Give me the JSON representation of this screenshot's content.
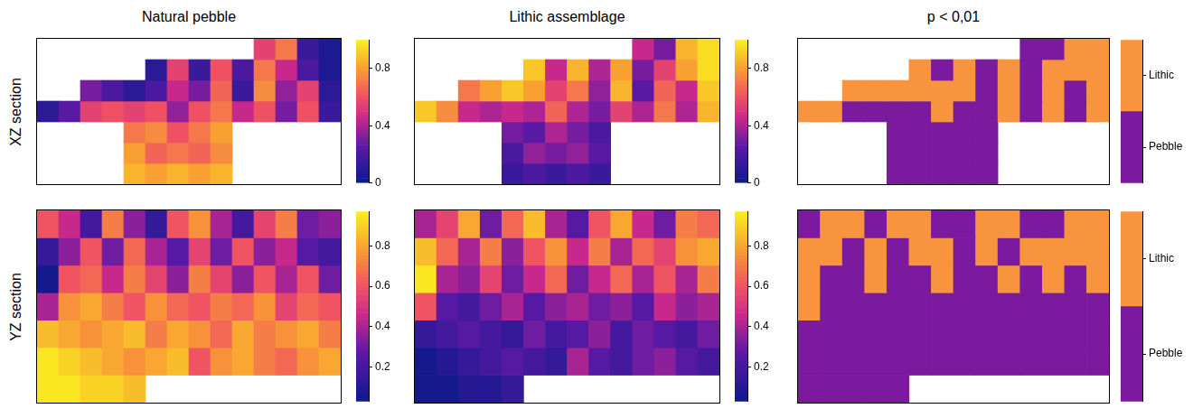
{
  "chart_data": [
    {
      "type": "heatmap",
      "title": "Natural pebble",
      "ylabel": "XZ section",
      "tick_labels": false,
      "cells": [
        [
          null,
          null,
          null,
          null,
          null,
          null,
          null,
          null,
          null,
          null,
          0.55,
          0.7,
          0.15,
          0.05
        ],
        [
          null,
          null,
          null,
          null,
          null,
          0.1,
          0.55,
          0.15,
          0.6,
          0.2,
          0.7,
          0.45,
          0.2,
          0.05
        ],
        [
          null,
          null,
          0.3,
          0.2,
          0.1,
          0.2,
          0.45,
          0.3,
          0.65,
          0.15,
          0.75,
          0.35,
          0.55,
          0.1
        ],
        [
          0.1,
          0.25,
          0.55,
          0.6,
          0.55,
          0.6,
          0.35,
          0.6,
          0.7,
          0.45,
          0.6,
          0.3,
          0.6,
          0.15
        ],
        [
          null,
          null,
          null,
          null,
          0.7,
          0.75,
          0.6,
          0.7,
          0.8,
          null,
          null,
          null,
          null,
          null
        ],
        [
          null,
          null,
          null,
          null,
          0.8,
          0.65,
          0.7,
          0.65,
          0.75,
          null,
          null,
          null,
          null,
          null
        ],
        [
          null,
          null,
          null,
          null,
          0.85,
          0.8,
          0.85,
          0.8,
          0.85,
          null,
          null,
          null,
          null,
          null
        ]
      ],
      "colorbar": {
        "range": [
          0,
          1
        ],
        "ticks": [
          0,
          0.4,
          0.8
        ]
      }
    },
    {
      "type": "heatmap",
      "title": "Lithic assemblage",
      "tick_labels": false,
      "cells": [
        [
          null,
          null,
          null,
          null,
          null,
          null,
          null,
          null,
          null,
          null,
          0.45,
          0.3,
          0.85,
          0.95
        ],
        [
          null,
          null,
          null,
          null,
          null,
          0.9,
          0.45,
          0.85,
          0.4,
          0.8,
          0.3,
          0.55,
          0.8,
          0.95
        ],
        [
          null,
          null,
          0.7,
          0.8,
          0.9,
          0.8,
          0.55,
          0.7,
          0.35,
          0.85,
          0.25,
          0.65,
          0.45,
          0.9
        ],
        [
          0.9,
          0.75,
          0.45,
          0.4,
          0.45,
          0.4,
          0.65,
          0.4,
          0.3,
          0.55,
          0.4,
          0.7,
          0.4,
          0.85
        ],
        [
          null,
          null,
          null,
          null,
          0.3,
          0.25,
          0.4,
          0.3,
          0.2,
          null,
          null,
          null,
          null,
          null
        ],
        [
          null,
          null,
          null,
          null,
          0.2,
          0.35,
          0.3,
          0.35,
          0.25,
          null,
          null,
          null,
          null,
          null
        ],
        [
          null,
          null,
          null,
          null,
          0.15,
          0.2,
          0.15,
          0.2,
          0.15,
          null,
          null,
          null,
          null,
          null
        ]
      ],
      "colorbar": {
        "range": [
          0,
          1
        ],
        "ticks": [
          0,
          0.4,
          0.8
        ]
      }
    },
    {
      "type": "heatmap",
      "title": "p < 0,01",
      "tick_labels": false,
      "colors": [
        "#7b1a9e",
        "#f7943d"
      ],
      "cells": [
        [
          null,
          null,
          null,
          null,
          null,
          null,
          null,
          null,
          null,
          null,
          0,
          0,
          1,
          1
        ],
        [
          null,
          null,
          null,
          null,
          null,
          1,
          0,
          1,
          0,
          1,
          0,
          1,
          1,
          1
        ],
        [
          null,
          null,
          1,
          1,
          1,
          1,
          1,
          1,
          0,
          1,
          0,
          1,
          0,
          1
        ],
        [
          1,
          1,
          0,
          0,
          0,
          0,
          1,
          0,
          0,
          1,
          0,
          1,
          0,
          1
        ],
        [
          null,
          null,
          null,
          null,
          0,
          0,
          0,
          0,
          0,
          null,
          null,
          null,
          null,
          null
        ],
        [
          null,
          null,
          null,
          null,
          0,
          0,
          0,
          0,
          0,
          null,
          null,
          null,
          null,
          null
        ],
        [
          null,
          null,
          null,
          null,
          0,
          0,
          0,
          0,
          0,
          null,
          null,
          null,
          null,
          null
        ]
      ],
      "colorbar": {
        "range": [
          0,
          1
        ],
        "ticks": [
          {
            "value": 0.75,
            "label": "Lithic"
          },
          {
            "value": 0.25,
            "label": "Pebble"
          }
        ]
      }
    },
    {
      "type": "heatmap",
      "ylabel": "YZ section",
      "tick_labels": false,
      "cells": [
        [
          0.6,
          0.45,
          0.2,
          0.7,
          0.35,
          0.15,
          0.6,
          0.75,
          0.4,
          0.2,
          0.55,
          0.7,
          0.3,
          0.35
        ],
        [
          0.15,
          0.35,
          0.6,
          0.3,
          0.65,
          0.4,
          0.25,
          0.55,
          0.3,
          0.6,
          0.35,
          0.45,
          0.25,
          0.2
        ],
        [
          0.05,
          0.6,
          0.65,
          0.45,
          0.7,
          0.55,
          0.35,
          0.7,
          0.55,
          0.35,
          0.6,
          0.4,
          0.6,
          0.3
        ],
        [
          0.4,
          0.75,
          0.8,
          0.7,
          0.6,
          0.75,
          0.65,
          0.6,
          0.7,
          0.65,
          0.75,
          0.55,
          0.65,
          0.6
        ],
        [
          0.85,
          0.8,
          0.75,
          0.8,
          0.85,
          0.7,
          0.8,
          0.75,
          0.65,
          0.8,
          0.7,
          0.75,
          0.8,
          0.7
        ],
        [
          0.95,
          0.9,
          0.85,
          0.8,
          0.75,
          0.8,
          0.85,
          0.6,
          0.75,
          0.8,
          0.7,
          0.65,
          0.75,
          0.8
        ],
        [
          0.95,
          0.95,
          0.9,
          0.9,
          0.85,
          null,
          null,
          null,
          null,
          null,
          null,
          null,
          null,
          null
        ]
      ],
      "colorbar": {
        "range": [
          0.03,
          0.97
        ],
        "ticks": [
          0.2,
          0.4,
          0.6,
          0.8
        ]
      }
    },
    {
      "type": "heatmap",
      "tick_labels": false,
      "cells": [
        [
          0.4,
          0.55,
          0.8,
          0.3,
          0.65,
          0.85,
          0.4,
          0.25,
          0.6,
          0.8,
          0.45,
          0.3,
          0.7,
          0.65
        ],
        [
          0.85,
          0.65,
          0.4,
          0.7,
          0.35,
          0.6,
          0.75,
          0.45,
          0.7,
          0.4,
          0.65,
          0.55,
          0.75,
          0.8
        ],
        [
          0.95,
          0.4,
          0.35,
          0.55,
          0.3,
          0.45,
          0.65,
          0.3,
          0.45,
          0.65,
          0.4,
          0.6,
          0.4,
          0.7
        ],
        [
          0.6,
          0.25,
          0.2,
          0.3,
          0.4,
          0.25,
          0.35,
          0.4,
          0.3,
          0.35,
          0.25,
          0.45,
          0.35,
          0.4
        ],
        [
          0.15,
          0.2,
          0.25,
          0.2,
          0.15,
          0.3,
          0.2,
          0.25,
          0.35,
          0.2,
          0.3,
          0.25,
          0.2,
          0.3
        ],
        [
          0.05,
          0.1,
          0.15,
          0.2,
          0.25,
          0.2,
          0.15,
          0.4,
          0.25,
          0.2,
          0.3,
          0.35,
          0.25,
          0.2
        ],
        [
          0.05,
          0.05,
          0.1,
          0.1,
          0.15,
          null,
          null,
          null,
          null,
          null,
          null,
          null,
          null,
          null
        ]
      ],
      "colorbar": {
        "range": [
          0.03,
          0.97
        ],
        "ticks": [
          0.2,
          0.4,
          0.6,
          0.8
        ]
      }
    },
    {
      "type": "heatmap",
      "tick_labels": false,
      "colors": [
        "#7b1a9e",
        "#f7943d"
      ],
      "cells": [
        [
          0,
          1,
          1,
          0,
          1,
          1,
          0,
          0,
          1,
          1,
          0,
          0,
          1,
          1
        ],
        [
          1,
          1,
          0,
          1,
          0,
          1,
          1,
          0,
          1,
          0,
          1,
          1,
          1,
          1
        ],
        [
          1,
          0,
          0,
          1,
          0,
          0,
          1,
          0,
          0,
          1,
          0,
          1,
          0,
          1
        ],
        [
          1,
          0,
          0,
          0,
          0,
          0,
          0,
          0,
          0,
          0,
          0,
          0,
          0,
          0
        ],
        [
          0,
          0,
          0,
          0,
          0,
          0,
          0,
          0,
          0,
          0,
          0,
          0,
          0,
          0
        ],
        [
          0,
          0,
          0,
          0,
          0,
          0,
          0,
          0,
          0,
          0,
          0,
          0,
          0,
          0
        ],
        [
          0,
          0,
          0,
          0,
          0,
          null,
          null,
          null,
          null,
          null,
          null,
          null,
          null,
          null
        ]
      ],
      "colorbar": {
        "range": [
          0,
          1
        ],
        "ticks": [
          {
            "value": 0.75,
            "label": "Lithic"
          },
          {
            "value": 0.25,
            "label": "Pebble"
          }
        ]
      }
    }
  ]
}
